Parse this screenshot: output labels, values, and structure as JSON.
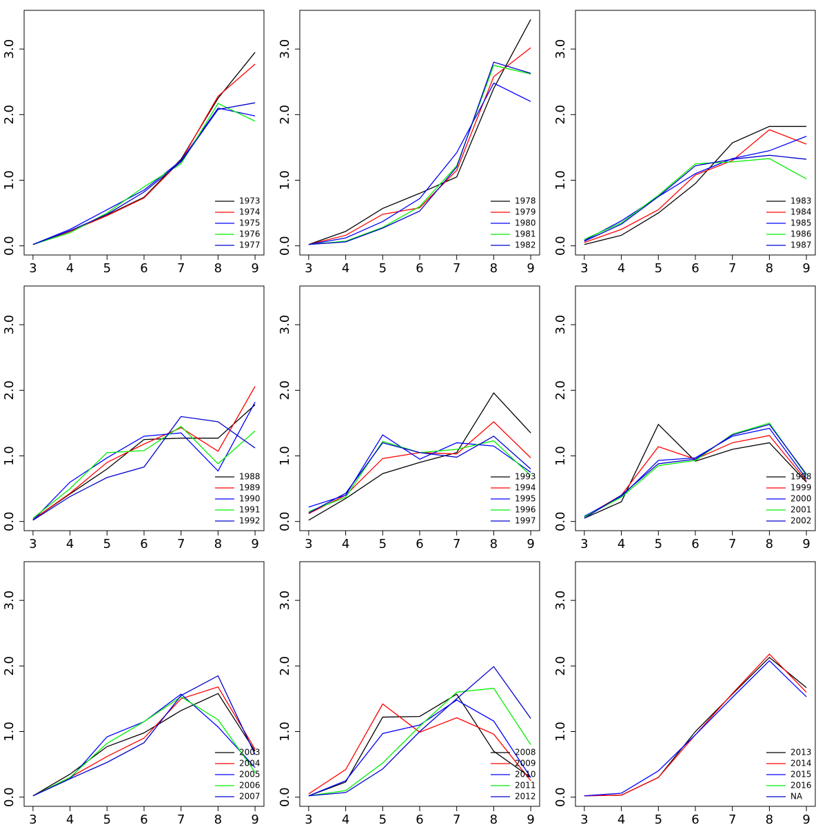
{
  "chart_data": [
    {
      "type": "line",
      "x": [
        3,
        4,
        5,
        6,
        7,
        8,
        9
      ],
      "xlim": [
        2.76,
        9.24
      ],
      "ylim": [
        -0.14,
        3.59
      ],
      "xticks": [
        3,
        4,
        5,
        6,
        7,
        8,
        9
      ],
      "yticks": [
        {
          "value": 0,
          "label": "0.0"
        },
        {
          "value": 1,
          "label": "1.0"
        },
        {
          "value": 2,
          "label": "2.0"
        },
        {
          "value": 3,
          "label": "3.0"
        }
      ],
      "legend": "bottomright",
      "series": [
        {
          "name": "1973",
          "color": "#000000",
          "values": [
            0.02,
            0.22,
            0.47,
            0.74,
            1.32,
            2.25,
            2.95
          ]
        },
        {
          "name": "1974",
          "color": "#ff0000",
          "values": [
            0.02,
            0.22,
            0.46,
            0.73,
            1.3,
            2.28,
            2.77
          ]
        },
        {
          "name": "1975",
          "color": "#0000ff",
          "values": [
            0.02,
            0.25,
            0.55,
            0.85,
            1.3,
            2.1,
            1.98
          ]
        },
        {
          "name": "1976",
          "color": "#00ee00",
          "values": [
            0.02,
            0.2,
            0.5,
            0.9,
            1.25,
            2.17,
            1.9
          ]
        },
        {
          "name": "1977",
          "color": "#0000cd",
          "values": [
            0.02,
            0.23,
            0.48,
            0.82,
            1.28,
            2.08,
            2.18
          ]
        }
      ]
    },
    {
      "type": "line",
      "x": [
        3,
        4,
        5,
        6,
        7,
        8,
        9
      ],
      "xlim": [
        2.76,
        9.24
      ],
      "ylim": [
        -0.14,
        3.59
      ],
      "xticks": [
        3,
        4,
        5,
        6,
        7,
        8,
        9
      ],
      "yticks": [
        {
          "value": 0,
          "label": "0.0"
        },
        {
          "value": 1,
          "label": "1.0"
        },
        {
          "value": 2,
          "label": "2.0"
        },
        {
          "value": 3,
          "label": "3.0"
        }
      ],
      "legend": "bottomright",
      "series": [
        {
          "name": "1978",
          "color": "#000000",
          "values": [
            0.02,
            0.22,
            0.57,
            0.8,
            1.05,
            2.4,
            3.45
          ]
        },
        {
          "name": "1979",
          "color": "#ff0000",
          "values": [
            0.02,
            0.16,
            0.48,
            0.58,
            1.15,
            2.58,
            3.02
          ]
        },
        {
          "name": "1980",
          "color": "#0000ff",
          "values": [
            0.02,
            0.12,
            0.37,
            0.72,
            1.42,
            2.48,
            2.2
          ]
        },
        {
          "name": "1981",
          "color": "#00ee00",
          "values": [
            0.02,
            0.07,
            0.28,
            0.6,
            1.22,
            2.75,
            2.62
          ]
        },
        {
          "name": "1982",
          "color": "#0000cd",
          "values": [
            0.02,
            0.06,
            0.27,
            0.53,
            1.2,
            2.8,
            2.63
          ]
        }
      ]
    },
    {
      "type": "line",
      "x": [
        3,
        4,
        5,
        6,
        7,
        8,
        9
      ],
      "xlim": [
        2.76,
        9.24
      ],
      "ylim": [
        -0.14,
        3.59
      ],
      "xticks": [
        3,
        4,
        5,
        6,
        7,
        8,
        9
      ],
      "yticks": [
        {
          "value": 0,
          "label": "0.0"
        },
        {
          "value": 1,
          "label": "1.0"
        },
        {
          "value": 2,
          "label": "2.0"
        },
        {
          "value": 3,
          "label": "3.0"
        }
      ],
      "legend": "bottomright",
      "series": [
        {
          "name": "1983",
          "color": "#000000",
          "values": [
            0.02,
            0.16,
            0.5,
            0.95,
            1.57,
            1.82,
            1.82
          ]
        },
        {
          "name": "1984",
          "color": "#ff0000",
          "values": [
            0.05,
            0.25,
            0.55,
            1.08,
            1.3,
            1.77,
            1.55
          ]
        },
        {
          "name": "1985",
          "color": "#0000ff",
          "values": [
            0.08,
            0.38,
            0.75,
            1.1,
            1.33,
            1.45,
            1.67
          ]
        },
        {
          "name": "1986",
          "color": "#00ee00",
          "values": [
            0.1,
            0.35,
            0.77,
            1.25,
            1.28,
            1.33,
            1.02
          ]
        },
        {
          "name": "1987",
          "color": "#0000cd",
          "values": [
            0.07,
            0.33,
            0.75,
            1.22,
            1.32,
            1.38,
            1.32
          ]
        }
      ]
    },
    {
      "type": "line",
      "x": [
        3,
        4,
        5,
        6,
        7,
        8,
        9
      ],
      "xlim": [
        2.76,
        9.24
      ],
      "ylim": [
        -0.14,
        3.59
      ],
      "xticks": [
        3,
        4,
        5,
        6,
        7,
        8,
        9
      ],
      "yticks": [
        {
          "value": 0,
          "label": "0.0"
        },
        {
          "value": 1,
          "label": "1.0"
        },
        {
          "value": 2,
          "label": "2.0"
        },
        {
          "value": 3,
          "label": "3.0"
        }
      ],
      "legend": "bottomright",
      "series": [
        {
          "name": "1988",
          "color": "#000000",
          "values": [
            0.03,
            0.42,
            0.8,
            1.25,
            1.27,
            1.27,
            1.78
          ]
        },
        {
          "name": "1989",
          "color": "#ff0000",
          "values": [
            0.03,
            0.43,
            0.9,
            1.18,
            1.43,
            1.07,
            2.06
          ]
        },
        {
          "name": "1990",
          "color": "#0000ff",
          "values": [
            0.02,
            0.6,
            0.97,
            1.3,
            1.35,
            0.77,
            1.82
          ]
        },
        {
          "name": "1991",
          "color": "#00ee00",
          "values": [
            0.05,
            0.5,
            1.05,
            1.08,
            1.45,
            0.88,
            1.38
          ]
        },
        {
          "name": "1992",
          "color": "#0000cd",
          "values": [
            0.02,
            0.38,
            0.67,
            0.83,
            1.6,
            1.52,
            1.12
          ]
        }
      ]
    },
    {
      "type": "line",
      "x": [
        3,
        4,
        5,
        6,
        7,
        8,
        9
      ],
      "xlim": [
        2.76,
        9.24
      ],
      "ylim": [
        -0.14,
        3.59
      ],
      "xticks": [
        3,
        4,
        5,
        6,
        7,
        8,
        9
      ],
      "yticks": [
        {
          "value": 0,
          "label": "0.0"
        },
        {
          "value": 1,
          "label": "1.0"
        },
        {
          "value": 2,
          "label": "2.0"
        },
        {
          "value": 3,
          "label": "3.0"
        }
      ],
      "legend": "bottomright",
      "series": [
        {
          "name": "1993",
          "color": "#000000",
          "values": [
            0.02,
            0.35,
            0.73,
            0.9,
            1.05,
            1.96,
            1.35
          ]
        },
        {
          "name": "1994",
          "color": "#ff0000",
          "values": [
            0.12,
            0.4,
            0.96,
            1.05,
            1.03,
            1.52,
            0.97
          ]
        },
        {
          "name": "1995",
          "color": "#0000ff",
          "values": [
            0.22,
            0.4,
            1.32,
            0.95,
            1.2,
            1.15,
            0.75
          ]
        },
        {
          "name": "1996",
          "color": "#00ee00",
          "values": [
            0.15,
            0.37,
            1.22,
            1.05,
            1.1,
            1.23,
            0.7
          ]
        },
        {
          "name": "1997",
          "color": "#0000cd",
          "values": [
            0.13,
            0.43,
            1.2,
            1.05,
            0.98,
            1.3,
            0.8
          ]
        }
      ]
    },
    {
      "type": "line",
      "x": [
        3,
        4,
        5,
        6,
        7,
        8,
        9
      ],
      "xlim": [
        2.76,
        9.24
      ],
      "ylim": [
        -0.14,
        3.59
      ],
      "xticks": [
        3,
        4,
        5,
        6,
        7,
        8,
        9
      ],
      "yticks": [
        {
          "value": 0,
          "label": "0.0"
        },
        {
          "value": 1,
          "label": "1.0"
        },
        {
          "value": 2,
          "label": "2.0"
        },
        {
          "value": 3,
          "label": "3.0"
        }
      ],
      "legend": "bottomright",
      "series": [
        {
          "name": "1998",
          "color": "#000000",
          "values": [
            0.05,
            0.3,
            1.48,
            0.92,
            1.1,
            1.2,
            0.6
          ]
        },
        {
          "name": "1999",
          "color": "#ff0000",
          "values": [
            0.07,
            0.4,
            1.14,
            0.95,
            1.2,
            1.31,
            0.62
          ]
        },
        {
          "name": "2000",
          "color": "#0000ff",
          "values": [
            0.08,
            0.38,
            0.93,
            0.97,
            1.3,
            1.42,
            0.65
          ]
        },
        {
          "name": "2001",
          "color": "#00ee00",
          "values": [
            0.07,
            0.37,
            0.85,
            0.93,
            1.33,
            1.5,
            0.7
          ]
        },
        {
          "name": "2002",
          "color": "#0000cd",
          "values": [
            0.05,
            0.4,
            0.88,
            0.95,
            1.32,
            1.48,
            0.72
          ]
        }
      ]
    },
    {
      "type": "line",
      "x": [
        3,
        4,
        5,
        6,
        7,
        8,
        9
      ],
      "xlim": [
        2.76,
        9.24
      ],
      "ylim": [
        -0.14,
        3.59
      ],
      "xticks": [
        3,
        4,
        5,
        6,
        7,
        8,
        9
      ],
      "yticks": [
        {
          "value": 0,
          "label": "0.0"
        },
        {
          "value": 1,
          "label": "1.0"
        },
        {
          "value": 2,
          "label": "2.0"
        },
        {
          "value": 3,
          "label": "3.0"
        }
      ],
      "legend": "bottomright",
      "series": [
        {
          "name": "2003",
          "color": "#000000",
          "values": [
            0.02,
            0.35,
            0.77,
            0.98,
            1.32,
            1.58,
            0.7
          ]
        },
        {
          "name": "2004",
          "color": "#ff0000",
          "values": [
            0.02,
            0.3,
            0.62,
            0.9,
            1.5,
            1.68,
            0.73
          ]
        },
        {
          "name": "2005",
          "color": "#0000ff",
          "values": [
            0.02,
            0.28,
            0.92,
            1.15,
            1.57,
            1.07,
            0.45
          ]
        },
        {
          "name": "2006",
          "color": "#00ee00",
          "values": [
            0.02,
            0.3,
            0.82,
            1.15,
            1.53,
            1.18,
            0.38
          ]
        },
        {
          "name": "2007",
          "color": "#0000cd",
          "values": [
            0.02,
            0.28,
            0.53,
            0.83,
            1.55,
            1.85,
            0.65
          ]
        }
      ]
    },
    {
      "type": "line",
      "x": [
        3,
        4,
        5,
        6,
        7,
        8,
        9
      ],
      "xlim": [
        2.76,
        9.24
      ],
      "ylim": [
        -0.14,
        3.59
      ],
      "xticks": [
        3,
        4,
        5,
        6,
        7,
        8,
        9
      ],
      "yticks": [
        {
          "value": 0,
          "label": "0.0"
        },
        {
          "value": 1,
          "label": "1.0"
        },
        {
          "value": 2,
          "label": "2.0"
        },
        {
          "value": 3,
          "label": "3.0"
        }
      ],
      "legend": "bottomright",
      "series": [
        {
          "name": "2008",
          "color": "#000000",
          "values": [
            0.02,
            0.23,
            1.22,
            1.23,
            1.57,
            0.7,
            0.3
          ]
        },
        {
          "name": "2009",
          "color": "#ff0000",
          "values": [
            0.05,
            0.42,
            1.42,
            0.99,
            1.21,
            0.96,
            0.25
          ]
        },
        {
          "name": "2010",
          "color": "#0000ff",
          "values": [
            0.02,
            0.25,
            0.97,
            1.1,
            1.48,
            1.16,
            0.3
          ]
        },
        {
          "name": "2011",
          "color": "#00ee00",
          "values": [
            0.02,
            0.1,
            0.52,
            1.08,
            1.6,
            1.66,
            0.8
          ]
        },
        {
          "name": "2012",
          "color": "#0000cd",
          "values": [
            0.02,
            0.07,
            0.43,
            1.0,
            1.5,
            1.99,
            1.2
          ]
        }
      ]
    },
    {
      "type": "line",
      "x": [
        3,
        4,
        5,
        6,
        7,
        8,
        9
      ],
      "xlim": [
        2.76,
        9.24
      ],
      "ylim": [
        -0.14,
        3.59
      ],
      "xticks": [
        3,
        4,
        5,
        6,
        7,
        8,
        9
      ],
      "yticks": [
        {
          "value": 0,
          "label": "0.0"
        },
        {
          "value": 1,
          "label": "1.0"
        },
        {
          "value": 2,
          "label": "2.0"
        },
        {
          "value": 3,
          "label": "3.0"
        }
      ],
      "legend": "bottomright",
      "series": [
        {
          "name": "2013",
          "color": "#000000",
          "values": [
            0.02,
            0.03,
            0.3,
            1.0,
            1.57,
            2.13,
            1.67
          ]
        },
        {
          "name": "2014",
          "color": "#ff0000",
          "values": [
            0.02,
            0.03,
            0.3,
            0.95,
            1.58,
            2.18,
            1.6
          ]
        },
        {
          "name": "2015",
          "color": "#0000ff",
          "values": [
            0.02,
            0.06,
            0.4,
            0.95,
            1.52,
            2.08,
            1.53
          ]
        },
        {
          "name": "2016",
          "color": "#00ee00",
          "values": [
            null,
            null,
            null,
            null,
            null,
            null,
            null
          ]
        },
        {
          "name": "NA",
          "color": "#0000cd",
          "values": [
            null,
            null,
            null,
            null,
            null,
            null,
            null
          ]
        }
      ]
    }
  ]
}
